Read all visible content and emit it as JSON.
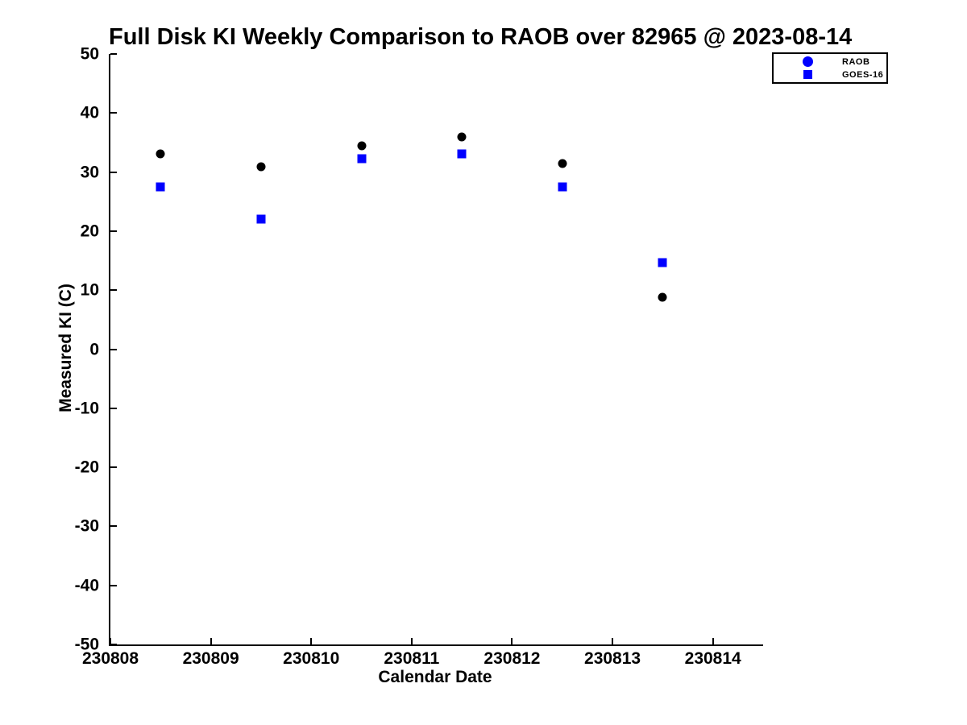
{
  "chart_data": {
    "type": "scatter",
    "title": "Full Disk KI Weekly Comparison to RAOB over 82965 @ 2023-08-14",
    "xlabel": "Calendar Date",
    "ylabel": "Measured KI (C)",
    "xlim": [
      230808,
      230814.5
    ],
    "ylim": [
      -50,
      50
    ],
    "xticks": [
      230808,
      230809,
      230810,
      230811,
      230812,
      230813,
      230814
    ],
    "yticks": [
      50,
      40,
      30,
      20,
      10,
      0,
      -10,
      -20,
      -30,
      -40,
      -50
    ],
    "grid": false,
    "legend_position": "top-right",
    "background_color": "#ffffff",
    "axis_color": "#000000",
    "series": [
      {
        "name": "RAOB",
        "marker": "circle",
        "plot_color": "#000000",
        "legend_color": "#0000ff",
        "x": [
          230808.5,
          230809.5,
          230810.5,
          230811.5,
          230812.5,
          230813.5
        ],
        "y": [
          33.1,
          30.9,
          34.5,
          35.9,
          31.5,
          8.8
        ]
      },
      {
        "name": "GOES-16",
        "marker": "square",
        "plot_color": "#0000ff",
        "legend_color": "#0000ff",
        "x": [
          230808.5,
          230809.5,
          230810.5,
          230811.5,
          230812.5,
          230813.5
        ],
        "y": [
          27.5,
          22.1,
          32.3,
          33.1,
          27.5,
          14.7
        ]
      }
    ]
  }
}
